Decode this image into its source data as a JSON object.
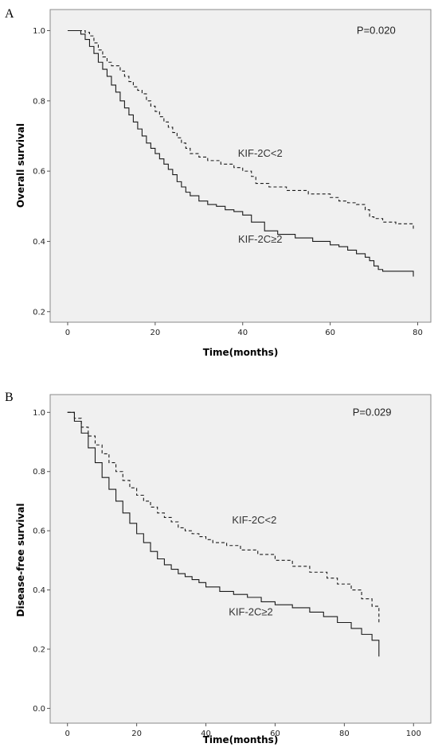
{
  "chart_data": [
    {
      "type": "line",
      "panel_label": "A",
      "xlabel": "Time(months)",
      "ylabel": "Overall survival",
      "xlim": [
        -4,
        83
      ],
      "ylim": [
        0.17,
        1.06
      ],
      "x_ticks": [
        0,
        20,
        40,
        60,
        80
      ],
      "y_ticks": [
        0.2,
        0.4,
        0.6,
        0.8,
        1.0
      ],
      "y_tick_labels": [
        "0.2",
        "0.4",
        "0.6",
        "0.8",
        "1.0"
      ],
      "grid": false,
      "annotations": [
        {
          "text": "P=0.020",
          "x": 70.5,
          "y": 1.0
        },
        {
          "text": "KIF-2C<2",
          "x": 44,
          "y": 0.65
        },
        {
          "text": "KIF-2C≥2",
          "x": 44,
          "y": 0.405
        }
      ],
      "series": [
        {
          "style": "dashed",
          "x": [
            0,
            4,
            5,
            6,
            7,
            8,
            9,
            10,
            12,
            13,
            14,
            15,
            16,
            17,
            18,
            19,
            20,
            21,
            22,
            23,
            24,
            25,
            26,
            27,
            28,
            30,
            32,
            35,
            38,
            40,
            42,
            43,
            46,
            50,
            55,
            60,
            62,
            64,
            66,
            68,
            69,
            70,
            72,
            75,
            79
          ],
          "y": [
            1.0,
            0.995,
            0.985,
            0.965,
            0.945,
            0.925,
            0.91,
            0.9,
            0.885,
            0.87,
            0.855,
            0.84,
            0.83,
            0.82,
            0.8,
            0.785,
            0.77,
            0.755,
            0.74,
            0.725,
            0.71,
            0.695,
            0.68,
            0.665,
            0.65,
            0.64,
            0.63,
            0.62,
            0.61,
            0.6,
            0.585,
            0.565,
            0.555,
            0.545,
            0.535,
            0.525,
            0.515,
            0.51,
            0.505,
            0.49,
            0.47,
            0.465,
            0.455,
            0.45,
            0.435
          ]
        },
        {
          "style": "solid",
          "x": [
            0,
            3,
            4,
            5,
            6,
            7,
            8,
            9,
            10,
            11,
            12,
            13,
            14,
            15,
            16,
            17,
            18,
            19,
            20,
            21,
            22,
            23,
            24,
            25,
            26,
            27,
            28,
            30,
            32,
            34,
            36,
            38,
            40,
            42,
            45,
            48,
            52,
            56,
            60,
            62,
            64,
            66,
            68,
            69,
            70,
            71,
            72,
            79
          ],
          "y": [
            1.0,
            0.99,
            0.975,
            0.955,
            0.935,
            0.91,
            0.89,
            0.87,
            0.845,
            0.825,
            0.8,
            0.78,
            0.76,
            0.74,
            0.72,
            0.7,
            0.68,
            0.665,
            0.65,
            0.635,
            0.62,
            0.605,
            0.59,
            0.57,
            0.555,
            0.54,
            0.53,
            0.515,
            0.505,
            0.5,
            0.49,
            0.485,
            0.475,
            0.455,
            0.43,
            0.42,
            0.41,
            0.4,
            0.39,
            0.385,
            0.375,
            0.365,
            0.355,
            0.345,
            0.33,
            0.32,
            0.315,
            0.3
          ]
        }
      ]
    },
    {
      "type": "line",
      "panel_label": "B",
      "xlabel": "Time(months)",
      "ylabel": "Disease-free survival",
      "xlim": [
        -5,
        105
      ],
      "ylim": [
        -0.05,
        1.06
      ],
      "x_ticks": [
        0,
        20,
        40,
        60,
        80,
        100
      ],
      "y_ticks": [
        0.0,
        0.2,
        0.4,
        0.6,
        0.8,
        1.0
      ],
      "y_tick_labels": [
        "0.0",
        "0.2",
        "0.4",
        "0.6",
        "0.8",
        "1.0"
      ],
      "grid": false,
      "annotations": [
        {
          "text": "P=0.029",
          "x": 88,
          "y": 1.0
        },
        {
          "text": "KIF-2C<2",
          "x": 54,
          "y": 0.635
        },
        {
          "text": "KIF-2C≥2",
          "x": 53,
          "y": 0.325
        }
      ],
      "series": [
        {
          "style": "dashed",
          "x": [
            0,
            2,
            4,
            6,
            8,
            10,
            12,
            14,
            16,
            18,
            20,
            22,
            24,
            26,
            28,
            30,
            32,
            34,
            36,
            38,
            40,
            42,
            46,
            50,
            55,
            60,
            65,
            70,
            75,
            78,
            82,
            85,
            88,
            90
          ],
          "y": [
            1.0,
            0.98,
            0.95,
            0.92,
            0.89,
            0.86,
            0.83,
            0.8,
            0.77,
            0.745,
            0.72,
            0.7,
            0.68,
            0.66,
            0.645,
            0.63,
            0.61,
            0.6,
            0.59,
            0.58,
            0.57,
            0.56,
            0.55,
            0.535,
            0.52,
            0.5,
            0.48,
            0.46,
            0.44,
            0.42,
            0.4,
            0.37,
            0.345,
            0.29
          ]
        },
        {
          "style": "solid",
          "x": [
            0,
            2,
            4,
            6,
            8,
            10,
            12,
            14,
            16,
            18,
            20,
            22,
            24,
            26,
            28,
            30,
            32,
            34,
            36,
            38,
            40,
            44,
            48,
            52,
            56,
            60,
            65,
            70,
            74,
            78,
            82,
            85,
            88,
            90
          ],
          "y": [
            1.0,
            0.97,
            0.93,
            0.88,
            0.83,
            0.78,
            0.74,
            0.7,
            0.66,
            0.625,
            0.59,
            0.56,
            0.53,
            0.505,
            0.485,
            0.47,
            0.455,
            0.445,
            0.435,
            0.425,
            0.41,
            0.395,
            0.385,
            0.375,
            0.36,
            0.35,
            0.34,
            0.325,
            0.31,
            0.29,
            0.27,
            0.25,
            0.23,
            0.175
          ]
        }
      ]
    }
  ]
}
